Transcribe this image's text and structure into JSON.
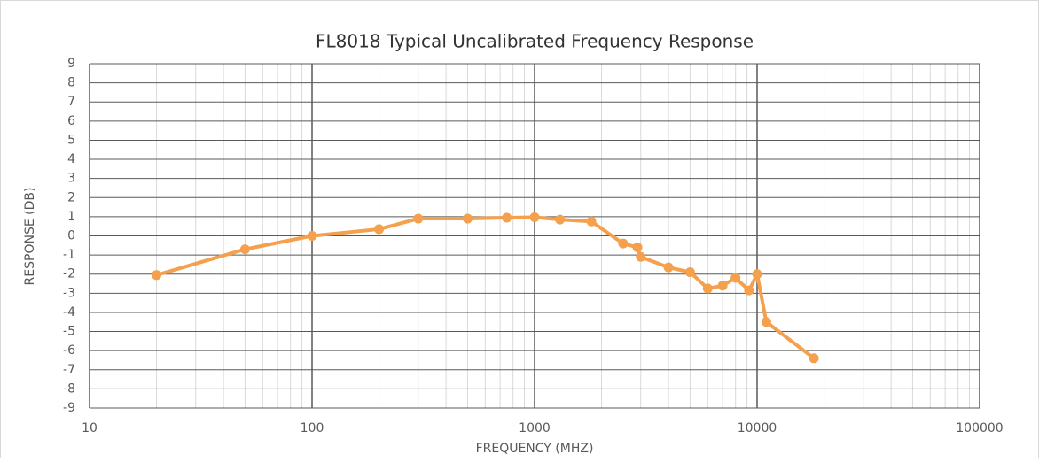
{
  "chart_data": {
    "type": "line",
    "title": "FL8018 Typical Uncalibrated Frequency Response",
    "x_label": "FREQUENCY (MHZ)",
    "y_label": "RESPONSE (DB)",
    "x_scale": "log",
    "grid": true,
    "xlim": [
      10,
      100000
    ],
    "xticks": [
      10,
      100,
      1000,
      10000,
      100000
    ],
    "ylim": [
      -9,
      9
    ],
    "yticks": [
      -9,
      -8,
      -7,
      -6,
      -5,
      -4,
      -3,
      -2,
      -1,
      0,
      1,
      2,
      3,
      4,
      5,
      6,
      7,
      8,
      9
    ],
    "x": [
      20,
      50,
      100,
      200,
      300,
      500,
      750,
      1000,
      1300,
      1800,
      2500,
      2900,
      3000,
      4000,
      5000,
      6000,
      7000,
      8000,
      9200,
      10000,
      11000,
      18000
    ],
    "series": [
      {
        "name": "Response",
        "color": "#f4a04d",
        "values": [
          -2.05,
          -0.7,
          0,
          0.35,
          0.9,
          0.9,
          0.95,
          0.97,
          0.85,
          0.75,
          -0.4,
          -0.6,
          -1.1,
          -1.65,
          -1.9,
          -2.75,
          -2.6,
          -2.2,
          -2.85,
          -2.0,
          -4.5,
          -6.4
        ]
      }
    ]
  }
}
